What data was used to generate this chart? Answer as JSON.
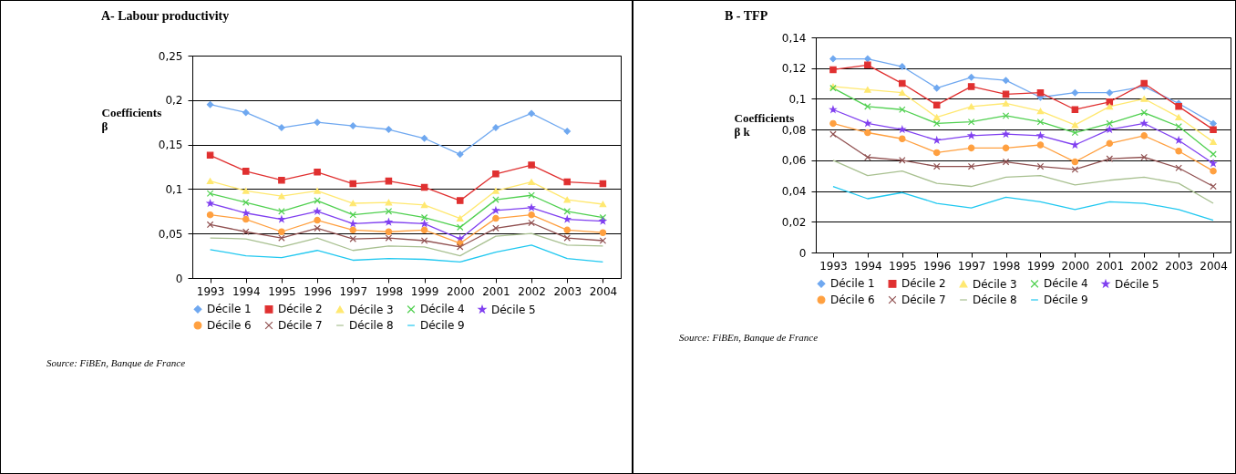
{
  "chart_data": [
    {
      "type": "line",
      "title": "A- Labour productivity",
      "ylabel": "Coefficients β",
      "categories": [
        "1993",
        "1994",
        "1995",
        "1996",
        "1997",
        "1998",
        "1999",
        "2000",
        "2001",
        "2002",
        "2003",
        "2004"
      ],
      "ylim": [
        0,
        0.25
      ],
      "yticks": [
        0,
        {
          "value": 0.05,
          "label": "0,05"
        },
        {
          "value": 0.1,
          "label": "0,1"
        },
        {
          "value": 0.15,
          "label": "0,15"
        },
        {
          "value": 0.2,
          "label": "0,2"
        },
        {
          "value": 0.25,
          "label": "0,25"
        }
      ],
      "grid": "y",
      "legend": "bottom",
      "annotations": [
        "Source: FiBEn, Banque de France"
      ],
      "series": [
        {
          "name": "Décile 1",
          "color": "#6fa8f0",
          "marker": "diamond",
          "values": [
            0.195,
            0.186,
            0.169,
            0.175,
            0.171,
            0.167,
            0.157,
            0.139,
            0.169,
            0.185,
            0.165,
            null
          ]
        },
        {
          "name": "Décile 2",
          "color": "#e03030",
          "marker": "square",
          "values": [
            0.138,
            0.12,
            0.11,
            0.119,
            0.106,
            0.109,
            0.102,
            0.087,
            0.117,
            0.127,
            0.108,
            0.106
          ]
        },
        {
          "name": "Décile 3",
          "color": "#ffe870",
          "marker": "triangle",
          "values": [
            0.109,
            0.098,
            0.092,
            0.098,
            0.084,
            0.085,
            0.082,
            0.067,
            0.098,
            0.108,
            0.088,
            0.083
          ]
        },
        {
          "name": "Décile 4",
          "color": "#50d050",
          "marker": "cross",
          "values": [
            0.095,
            0.085,
            0.075,
            0.087,
            0.071,
            0.075,
            0.068,
            0.057,
            0.088,
            0.093,
            0.075,
            0.068
          ]
        },
        {
          "name": "Décile 5",
          "color": "#8040f0",
          "marker": "star",
          "values": [
            0.084,
            0.073,
            0.066,
            0.075,
            0.061,
            0.063,
            0.061,
            0.044,
            0.076,
            0.079,
            0.066,
            0.064
          ]
        },
        {
          "name": "Décile 6",
          "color": "#ffa040",
          "marker": "circle",
          "values": [
            0.071,
            0.066,
            0.052,
            0.065,
            0.054,
            0.052,
            0.054,
            0.039,
            0.067,
            0.071,
            0.054,
            0.051
          ]
        },
        {
          "name": "Décile 7",
          "color": "#905050",
          "marker": "cross",
          "values": [
            0.06,
            0.052,
            0.045,
            0.056,
            0.044,
            0.045,
            0.042,
            0.035,
            0.056,
            0.062,
            0.045,
            0.042
          ]
        },
        {
          "name": "Décile 8",
          "color": "#a8c090",
          "marker": "none",
          "values": [
            0.045,
            0.044,
            0.035,
            0.045,
            0.031,
            0.036,
            0.035,
            0.025,
            0.047,
            0.05,
            0.037,
            0.036
          ]
        },
        {
          "name": "Décile 9",
          "color": "#20c8f0",
          "marker": "none",
          "values": [
            0.032,
            0.025,
            0.023,
            0.031,
            0.02,
            0.022,
            0.021,
            0.018,
            0.029,
            0.037,
            0.022,
            0.018
          ]
        }
      ]
    },
    {
      "type": "line",
      "title": "B - TFP",
      "ylabel": "Coefficients β k",
      "categories": [
        "1993",
        "1994",
        "1995",
        "1996",
        "1997",
        "1998",
        "1999",
        "2000",
        "2001",
        "2002",
        "2003",
        "2004"
      ],
      "ylim": [
        0,
        0.14
      ],
      "yticks": [
        0,
        {
          "value": 0.02,
          "label": "0,02"
        },
        {
          "value": 0.04,
          "label": "0,04"
        },
        {
          "value": 0.06,
          "label": "0,06"
        },
        {
          "value": 0.08,
          "label": "0,08"
        },
        {
          "value": 0.1,
          "label": "0,1"
        },
        {
          "value": 0.12,
          "label": "0,12"
        },
        {
          "value": 0.14,
          "label": "0,14"
        }
      ],
      "grid": "y",
      "legend": "bottom",
      "annotations": [
        "Source: FiBEn, Banque de France"
      ],
      "series": [
        {
          "name": "Décile 1",
          "color": "#6fa8f0",
          "marker": "diamond",
          "values": [
            0.126,
            0.126,
            0.121,
            0.107,
            0.114,
            0.112,
            0.101,
            0.104,
            0.104,
            0.108,
            0.097,
            0.084
          ]
        },
        {
          "name": "Décile 2",
          "color": "#e03030",
          "marker": "square",
          "values": [
            0.119,
            0.122,
            0.11,
            0.096,
            0.108,
            0.103,
            0.104,
            0.093,
            0.098,
            0.11,
            0.095,
            0.08
          ]
        },
        {
          "name": "Décile 3",
          "color": "#ffe870",
          "marker": "triangle",
          "values": [
            0.108,
            0.106,
            0.104,
            0.088,
            0.095,
            0.097,
            0.092,
            0.083,
            0.095,
            0.1,
            0.088,
            0.072
          ]
        },
        {
          "name": "Décile 4",
          "color": "#50d050",
          "marker": "cross",
          "values": [
            0.107,
            0.095,
            0.093,
            0.084,
            0.085,
            0.089,
            0.085,
            0.078,
            0.084,
            0.091,
            0.082,
            0.064
          ]
        },
        {
          "name": "Décile 5",
          "color": "#8040f0",
          "marker": "star",
          "values": [
            0.093,
            0.084,
            0.08,
            0.073,
            0.076,
            0.077,
            0.076,
            0.07,
            0.08,
            0.084,
            0.073,
            0.058
          ]
        },
        {
          "name": "Décile 6",
          "color": "#ffa040",
          "marker": "circle",
          "values": [
            0.084,
            0.078,
            0.074,
            0.065,
            0.068,
            0.068,
            0.07,
            0.059,
            0.071,
            0.076,
            0.066,
            0.053
          ]
        },
        {
          "name": "Décile 7",
          "color": "#905050",
          "marker": "cross",
          "values": [
            0.077,
            0.062,
            0.06,
            0.056,
            0.056,
            0.059,
            0.056,
            0.054,
            0.061,
            0.062,
            0.055,
            0.043
          ]
        },
        {
          "name": "Décile 8",
          "color": "#a8c090",
          "marker": "none",
          "values": [
            0.06,
            0.05,
            0.053,
            0.045,
            0.043,
            0.049,
            0.05,
            0.044,
            0.047,
            0.049,
            0.045,
            0.032
          ]
        },
        {
          "name": "Décile 9",
          "color": "#20c8f0",
          "marker": "none",
          "values": [
            0.043,
            0.035,
            0.039,
            0.032,
            0.029,
            0.036,
            0.033,
            0.028,
            0.033,
            0.032,
            0.028,
            0.021
          ]
        }
      ]
    }
  ]
}
